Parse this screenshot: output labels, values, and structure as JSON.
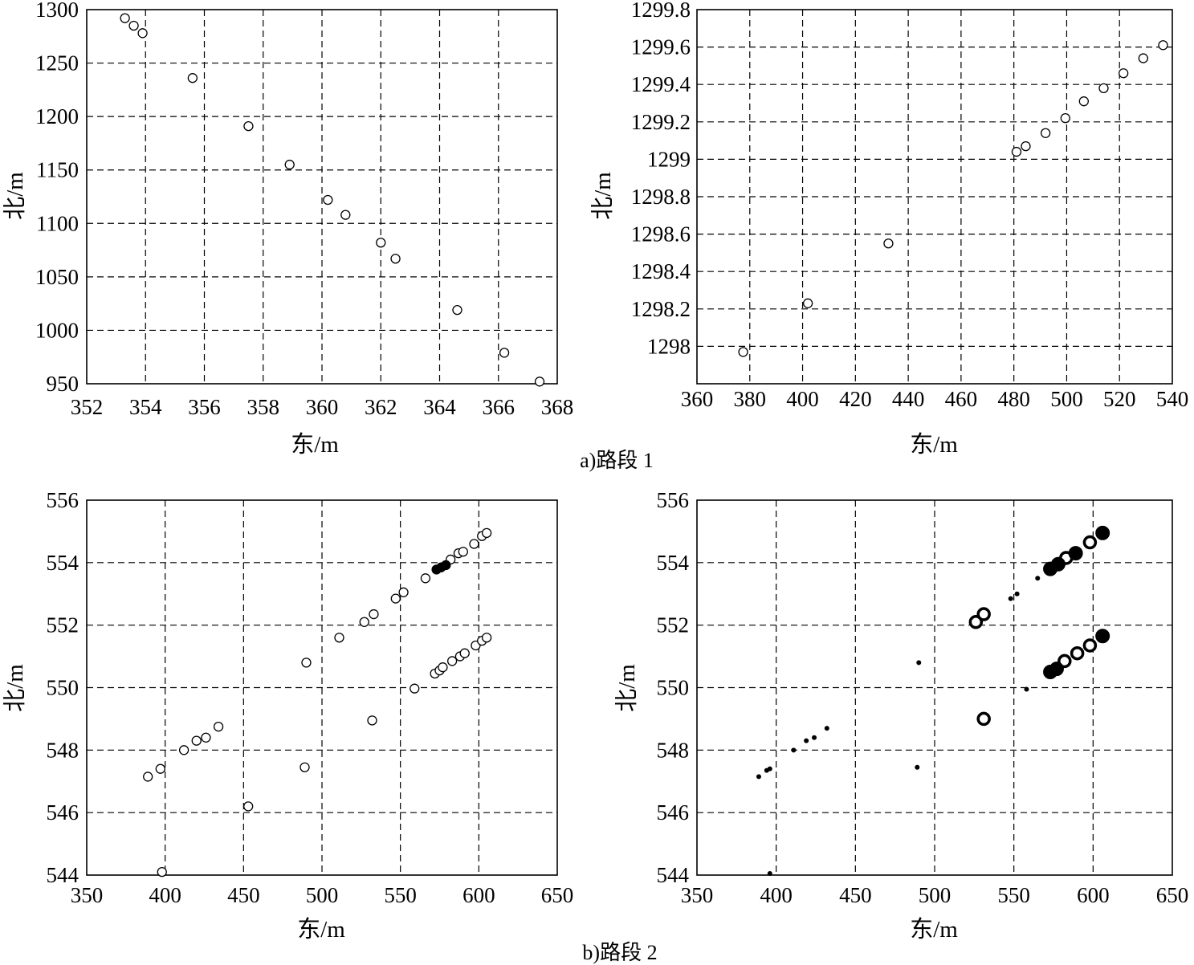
{
  "captions": {
    "a": "a)路段 1",
    "b": "b)路段 2"
  },
  "chart_data": [
    {
      "id": "a-left",
      "type": "scatter",
      "xlabel": "东/m",
      "ylabel": "北/m",
      "xlim": [
        352,
        368
      ],
      "ylim": [
        950,
        1300
      ],
      "xticks": [
        "352",
        "354",
        "356",
        "358",
        "360",
        "362",
        "364",
        "366",
        "368"
      ],
      "yticks": [
        "950",
        "1000",
        "1050",
        "1100",
        "1150",
        "1200",
        "1250",
        "1300"
      ],
      "grid": true,
      "series": [
        {
          "marker": "open-circle",
          "points": [
            [
              353.3,
              1292
            ],
            [
              353.6,
              1285
            ],
            [
              353.9,
              1278
            ],
            [
              355.6,
              1236
            ],
            [
              357.5,
              1191
            ],
            [
              358.9,
              1155
            ],
            [
              360.2,
              1122
            ],
            [
              360.8,
              1108
            ],
            [
              362.0,
              1082
            ],
            [
              362.5,
              1067
            ],
            [
              364.6,
              1019
            ],
            [
              366.2,
              979
            ],
            [
              367.4,
              952
            ]
          ]
        }
      ]
    },
    {
      "id": "a-right",
      "type": "scatter",
      "xlabel": "东/m",
      "ylabel": "北/m",
      "xlim": [
        360,
        540
      ],
      "ylim": [
        1297.8,
        1299.8
      ],
      "xticks": [
        "360",
        "380",
        "400",
        "420",
        "440",
        "460",
        "480",
        "500",
        "520",
        "540"
      ],
      "yticks": [
        "1298",
        "1298.2",
        "1298.4",
        "1298.6",
        "1298.8",
        "1299",
        "1299.2",
        "1299.4",
        "1299.6",
        "1299.8"
      ],
      "grid": true,
      "series": [
        {
          "marker": "open-circle",
          "points": [
            [
              377.5,
              1297.97
            ],
            [
              402,
              1298.23
            ],
            [
              432.5,
              1298.55
            ],
            [
              481,
              1299.04
            ],
            [
              484.5,
              1299.07
            ],
            [
              492,
              1299.14
            ],
            [
              499.5,
              1299.22
            ],
            [
              506.5,
              1299.31
            ],
            [
              514,
              1299.38
            ],
            [
              521.5,
              1299.46
            ],
            [
              529,
              1299.54
            ],
            [
              536.5,
              1299.61
            ]
          ]
        }
      ]
    },
    {
      "id": "b-left",
      "type": "scatter",
      "xlabel": "东/m",
      "ylabel": "北/m",
      "xlim": [
        350,
        650
      ],
      "ylim": [
        544,
        556
      ],
      "xticks": [
        "350",
        "400",
        "450",
        "500",
        "550",
        "600",
        "650"
      ],
      "yticks": [
        "544",
        "546",
        "548",
        "550",
        "552",
        "554",
        "556"
      ],
      "grid": true,
      "series": [
        {
          "marker": "open-circle",
          "points": [
            [
              398,
              544.1
            ],
            [
              453,
              546.2
            ],
            [
              389,
              547.15
            ],
            [
              397,
              547.4
            ],
            [
              489,
              547.45
            ],
            [
              532,
              548.95
            ],
            [
              412,
              548.0
            ],
            [
              420,
              548.3
            ],
            [
              426,
              548.4
            ],
            [
              434,
              548.75
            ],
            [
              490,
              550.8
            ],
            [
              511,
              551.6
            ],
            [
              527,
              552.1
            ],
            [
              533,
              552.35
            ],
            [
              547,
              552.85
            ],
            [
              552,
              553.05
            ],
            [
              566,
              553.5
            ],
            [
              582,
              554.1
            ],
            [
              587,
              554.3
            ],
            [
              590,
              554.35
            ],
            [
              597,
              554.6
            ],
            [
              602,
              554.85
            ],
            [
              605,
              554.95
            ],
            [
              559,
              549.97
            ],
            [
              572,
              550.45
            ],
            [
              575,
              550.55
            ],
            [
              577,
              550.65
            ],
            [
              583,
              550.85
            ],
            [
              588,
              551.0
            ],
            [
              591,
              551.1
            ],
            [
              598,
              551.35
            ],
            [
              602,
              551.5
            ],
            [
              605,
              551.6
            ]
          ]
        },
        {
          "marker": "filled-circle",
          "points": [
            [
              573,
              553.78
            ],
            [
              576,
              553.85
            ],
            [
              579,
              553.92
            ]
          ]
        }
      ]
    },
    {
      "id": "b-right",
      "type": "scatter",
      "xlabel": "东/m",
      "ylabel": "北/m",
      "xlim": [
        350,
        650
      ],
      "ylim": [
        544,
        556
      ],
      "xticks": [
        "350",
        "400",
        "450",
        "500",
        "550",
        "600",
        "650"
      ],
      "yticks": [
        "544",
        "546",
        "548",
        "550",
        "552",
        "554",
        "556"
      ],
      "grid": true,
      "series": [
        {
          "marker": "small-dot",
          "points": [
            [
              396,
              544.05
            ],
            [
              389,
              547.15
            ],
            [
              394,
              547.35
            ],
            [
              396,
              547.4
            ],
            [
              411,
              548.0
            ],
            [
              419,
              548.3
            ],
            [
              424,
              548.4
            ],
            [
              432,
              548.7
            ],
            [
              489,
              547.45
            ],
            [
              490,
              550.8
            ],
            [
              548,
              552.85
            ],
            [
              552,
              553.0
            ],
            [
              565,
              553.5
            ],
            [
              558,
              549.95
            ]
          ]
        },
        {
          "marker": "open-circle-bold",
          "points": [
            [
              526,
              552.1
            ],
            [
              531,
              552.35
            ],
            [
              531,
              549.0
            ],
            [
              583,
              554.15
            ],
            [
              598,
              554.65
            ],
            [
              582,
              550.85
            ],
            [
              590,
              551.1
            ],
            [
              598,
              551.35
            ]
          ]
        },
        {
          "marker": "filled-circle-large",
          "points": [
            [
              573,
              553.8
            ],
            [
              578,
              553.95
            ],
            [
              589,
              554.3
            ],
            [
              606,
              554.95
            ],
            [
              573,
              550.5
            ],
            [
              577,
              550.6
            ],
            [
              606,
              551.65
            ]
          ]
        }
      ]
    }
  ]
}
